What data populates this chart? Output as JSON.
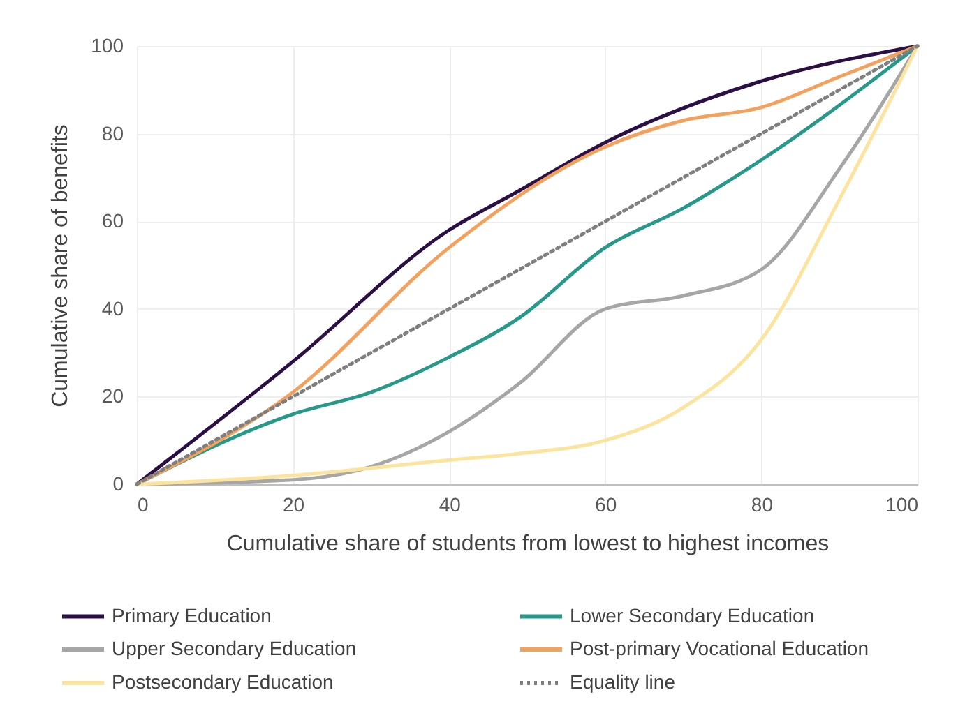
{
  "chart_data": {
    "type": "line",
    "xlabel": "Cumulative share of students from lowest to highest incomes",
    "ylabel": "Cumulative share of benefits",
    "xlim": [
      0,
      100
    ],
    "ylim": [
      0,
      100
    ],
    "xticks": [
      0,
      20,
      40,
      60,
      80,
      100
    ],
    "yticks": [
      0,
      20,
      40,
      60,
      80,
      100
    ],
    "grid": true,
    "legend": "bottom",
    "series": [
      {
        "name": "Primary Education",
        "color": "#2c0f45",
        "line_style": "solid",
        "x": [
          0,
          20,
          40,
          49,
          60,
          80,
          100
        ],
        "values": [
          0,
          28,
          58,
          67,
          78,
          92,
          100
        ]
      },
      {
        "name": "Lower Secondary Education",
        "color": "#26998a",
        "line_style": "solid",
        "x": [
          0,
          20,
          30,
          40,
          49,
          60,
          70,
          80,
          100
        ],
        "values": [
          0,
          16,
          21,
          29,
          38,
          54,
          63,
          74,
          100
        ]
      },
      {
        "name": "Upper Secondary Education",
        "color": "#a6a6a6",
        "line_style": "solid",
        "x": [
          0,
          20,
          30,
          40,
          49,
          60,
          70,
          80,
          90,
          100
        ],
        "values": [
          0,
          1,
          4,
          12,
          23,
          40,
          43,
          49,
          72,
          100
        ]
      },
      {
        "name": "Post-primary Vocational Education",
        "color": "#f4a15d",
        "line_style": "solid",
        "x": [
          0,
          20,
          40,
          60,
          70,
          80,
          90,
          100
        ],
        "values": [
          0,
          21,
          54,
          77,
          83,
          86,
          93,
          100
        ]
      },
      {
        "name": "Postsecondary Education",
        "color": "#fde49e",
        "line_style": "solid",
        "x": [
          0,
          20,
          40,
          49,
          60,
          70,
          80,
          90,
          100
        ],
        "values": [
          0,
          2,
          5.5,
          7,
          10,
          17.5,
          33,
          65,
          100
        ]
      },
      {
        "name": "Equality line",
        "color": "#7f7f7f",
        "line_style": "dotted",
        "x": [
          0,
          100
        ],
        "values": [
          0,
          100
        ]
      }
    ]
  }
}
